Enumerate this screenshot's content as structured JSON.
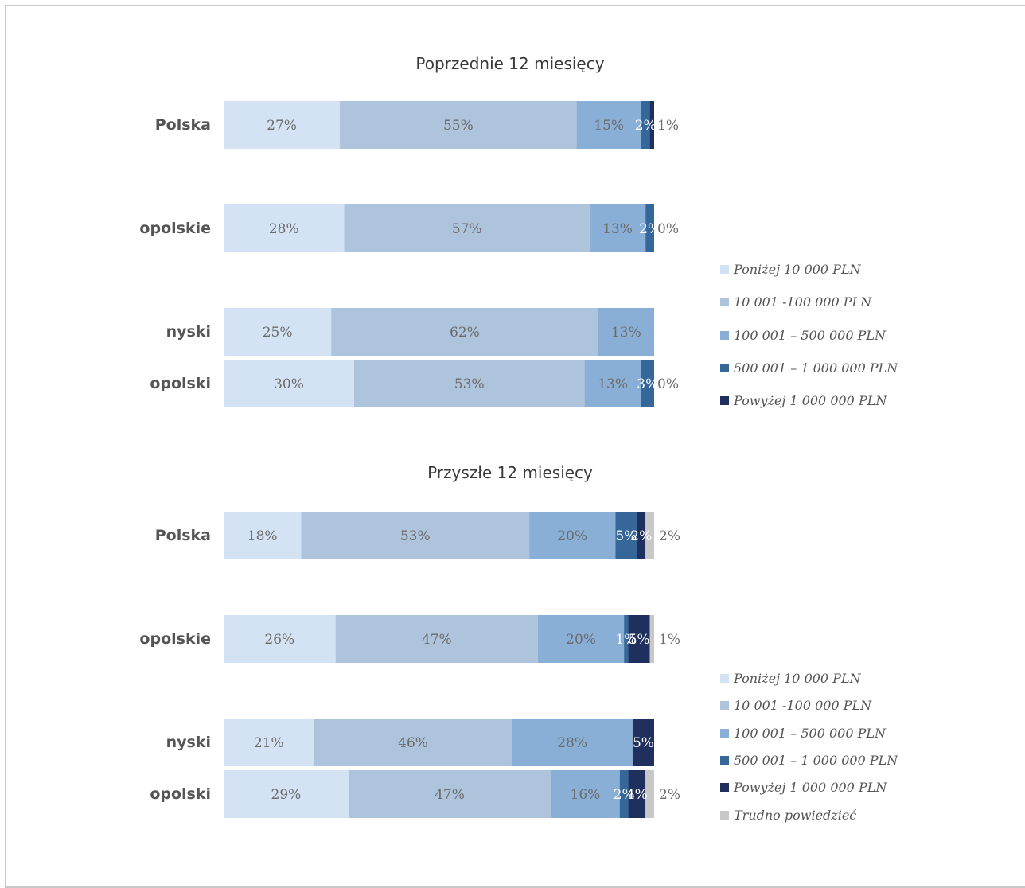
{
  "colors": {
    "below_10k": "#d4e3f3",
    "10k_100k": "#aec3dc",
    "100k_500k": "#8aafd6",
    "500k_1m": "#35679a",
    "above_1m": "#1f2f5e",
    "hard_to_say": "#c8c8c8"
  },
  "chart_data": [
    {
      "type": "bar",
      "orientation": "horizontal",
      "stacked": true,
      "title": "Poprzednie 12 miesięcy",
      "categories": [
        "Polska",
        "opolskie",
        "nyski",
        "opolski"
      ],
      "series": [
        {
          "name": "Poniżej 10 000 PLN",
          "values": [
            27,
            28,
            25,
            30
          ],
          "labels": [
            "27%",
            "28%",
            "25%",
            "30%"
          ]
        },
        {
          "name": "10 001 -100 000 PLN",
          "values": [
            55,
            57,
            62,
            53
          ],
          "labels": [
            "55%",
            "57%",
            "62%",
            "53%"
          ]
        },
        {
          "name": "100 001 – 500 000 PLN",
          "values": [
            15,
            13,
            13,
            13
          ],
          "labels": [
            "15%",
            "13%",
            "13%",
            "13%"
          ]
        },
        {
          "name": "500 001 – 1 000 000 PLN",
          "values": [
            2,
            2,
            0,
            3
          ],
          "labels": [
            "2%",
            "2%",
            "",
            "3%"
          ]
        },
        {
          "name": "Powyżej 1 000 000 PLN",
          "values": [
            1,
            0,
            0,
            0
          ],
          "labels": [
            "1%",
            "0%",
            "",
            "0%"
          ]
        }
      ],
      "legend_position": "right"
    },
    {
      "type": "bar",
      "orientation": "horizontal",
      "stacked": true,
      "title": "Przyszłe 12 miesięcy",
      "categories": [
        "Polska",
        "opolskie",
        "nyski",
        "opolski"
      ],
      "series": [
        {
          "name": "Poniżej 10 000 PLN",
          "values": [
            18,
            26,
            21,
            29
          ],
          "labels": [
            "18%",
            "26%",
            "21%",
            "29%"
          ]
        },
        {
          "name": "10 001 -100 000 PLN",
          "values": [
            53,
            47,
            46,
            47
          ],
          "labels": [
            "53%",
            "47%",
            "46%",
            "47%"
          ]
        },
        {
          "name": "100 001 – 500 000 PLN",
          "values": [
            20,
            20,
            28,
            16
          ],
          "labels": [
            "20%",
            "20%",
            "28%",
            "16%"
          ]
        },
        {
          "name": "500 001 – 1 000 000 PLN",
          "values": [
            5,
            1,
            0,
            2
          ],
          "labels": [
            "5%",
            "1%",
            "",
            "2%"
          ]
        },
        {
          "name": "Powyżej 1 000 000 PLN",
          "values": [
            2,
            5,
            5,
            4
          ],
          "labels": [
            "2%",
            "5%",
            "5%",
            "4%"
          ]
        },
        {
          "name": "Trudno powiedzieć",
          "values": [
            2,
            1,
            0,
            2
          ],
          "labels": [
            "2%",
            "1%",
            "",
            "2%"
          ]
        }
      ],
      "legend_position": "right"
    }
  ]
}
